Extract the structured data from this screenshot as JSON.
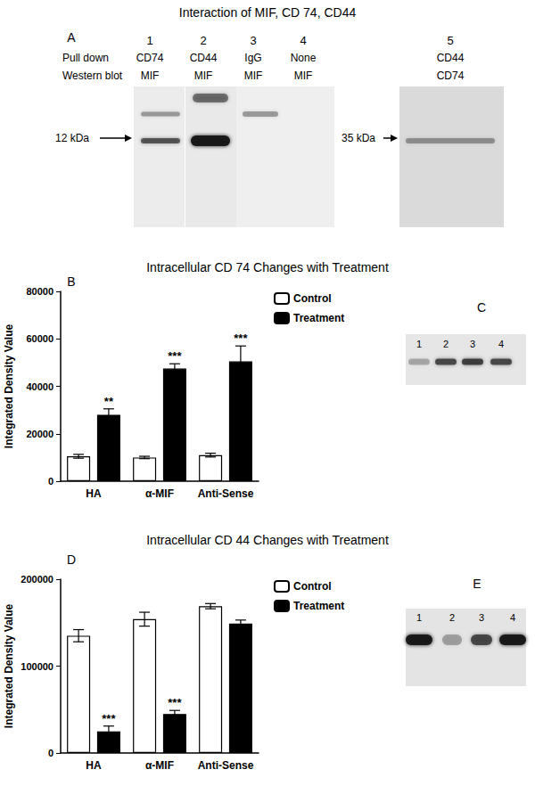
{
  "figure": {
    "title": "Interaction of MIF, CD 74, CD44",
    "panel_A": {
      "label": "A",
      "row_labels": [
        "Pull down",
        "Western blot"
      ],
      "lanes": [
        {
          "lane": "1",
          "pull_down": "CD74",
          "western_blot": "MIF"
        },
        {
          "lane": "2",
          "pull_down": "CD44",
          "western_blot": "MIF"
        },
        {
          "lane": "3",
          "pull_down": "IgG",
          "western_blot": "MIF"
        },
        {
          "lane": "4",
          "pull_down": "None",
          "western_blot": "MIF"
        }
      ],
      "size_label": "12 kDa",
      "side_blot": {
        "lane": "5",
        "pull_down": "CD44",
        "western_blot": "CD74",
        "size_label": "35 kDa"
      }
    },
    "panel_C": {
      "label": "C",
      "lanes": [
        "1",
        "2",
        "3",
        "4"
      ]
    },
    "panel_E": {
      "label": "E",
      "lanes": [
        "1",
        "2",
        "3",
        "4"
      ]
    }
  },
  "chart_data": [
    {
      "type": "bar",
      "title": "Intracellular CD 74 Changes with Treatment",
      "annotations": [
        "B"
      ],
      "categories": [
        "HA",
        "α-MIF",
        "Anti-Sense"
      ],
      "y_label": "Integrated Density Value",
      "series": [
        {
          "name": "Control",
          "color": "#ffffff",
          "values": [
            10500,
            10000,
            11000
          ],
          "errors": [
            800,
            500,
            800
          ]
        },
        {
          "name": "Treatment",
          "color": "#000000",
          "values": [
            28000,
            47500,
            50500
          ],
          "errors": [
            2500,
            2000,
            6500
          ],
          "significance": [
            "**",
            "***",
            "***"
          ]
        }
      ],
      "ylim": [
        0,
        80000
      ],
      "yticks": [
        0,
        20000,
        40000,
        60000,
        80000
      ],
      "grid": false,
      "legend": "right"
    },
    {
      "type": "bar",
      "title": "Intracellular CD 44 Changes with Treatment",
      "annotations": [
        "D"
      ],
      "categories": [
        "HA",
        "α-MIF",
        "Anti-Sense"
      ],
      "y_label": "Integrated Density Value",
      "series": [
        {
          "name": "Control",
          "color": "#ffffff",
          "values": [
            135000,
            154000,
            169000
          ],
          "errors": [
            7000,
            8000,
            3000
          ]
        },
        {
          "name": "Treatment",
          "color": "#000000",
          "values": [
            25000,
            45000,
            149000
          ],
          "errors": [
            6000,
            4000,
            4000
          ],
          "significance": [
            "***",
            "***",
            null
          ]
        }
      ],
      "ylim": [
        0,
        200000
      ],
      "yticks": [
        0,
        100000,
        200000
      ],
      "grid": false,
      "legend": "right"
    }
  ]
}
